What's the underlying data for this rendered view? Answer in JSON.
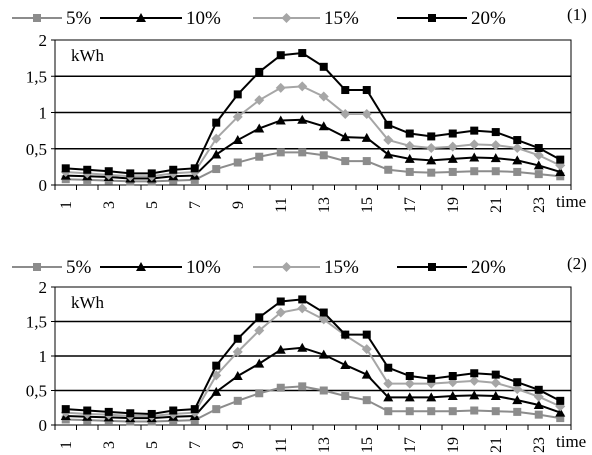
{
  "chart_data": [
    {
      "type": "line",
      "label": "(1)",
      "unit": "kWh",
      "xlabel": "time",
      "x": [
        1,
        2,
        3,
        4,
        5,
        6,
        7,
        8,
        9,
        10,
        11,
        12,
        13,
        14,
        15,
        16,
        17,
        18,
        19,
        20,
        21,
        22,
        23,
        24
      ],
      "x_tick_labels": [
        "1",
        "3",
        "5",
        "7",
        "9",
        "11",
        "13",
        "15",
        "17",
        "19",
        "21",
        "23"
      ],
      "ylim": [
        0,
        2
      ],
      "y_tick_labels": [
        "0",
        "0,5",
        "1",
        "1,5",
        "2"
      ],
      "series": [
        {
          "name": "5%",
          "color": "#8c8c8c",
          "marker": "square",
          "values": [
            0.08,
            0.07,
            0.06,
            0.05,
            0.05,
            0.06,
            0.07,
            0.22,
            0.31,
            0.39,
            0.45,
            0.45,
            0.41,
            0.33,
            0.33,
            0.21,
            0.18,
            0.17,
            0.18,
            0.19,
            0.19,
            0.18,
            0.15,
            0.12
          ]
        },
        {
          "name": "10%",
          "color": "#000000",
          "marker": "triangle",
          "values": [
            0.13,
            0.12,
            0.11,
            0.09,
            0.09,
            0.12,
            0.13,
            0.42,
            0.62,
            0.78,
            0.89,
            0.9,
            0.81,
            0.66,
            0.65,
            0.42,
            0.36,
            0.34,
            0.36,
            0.38,
            0.37,
            0.34,
            0.27,
            0.18
          ]
        },
        {
          "name": "15%",
          "color": "#a6a6a6",
          "marker": "diamond",
          "values": [
            0.18,
            0.16,
            0.14,
            0.12,
            0.12,
            0.16,
            0.18,
            0.64,
            0.94,
            1.17,
            1.34,
            1.36,
            1.22,
            0.98,
            0.98,
            0.62,
            0.54,
            0.51,
            0.53,
            0.56,
            0.55,
            0.51,
            0.41,
            0.27
          ]
        },
        {
          "name": "20%",
          "color": "#000000",
          "marker": "square",
          "values": [
            0.23,
            0.21,
            0.19,
            0.16,
            0.16,
            0.21,
            0.23,
            0.86,
            1.25,
            1.56,
            1.79,
            1.82,
            1.63,
            1.31,
            1.31,
            0.83,
            0.71,
            0.67,
            0.71,
            0.75,
            0.73,
            0.62,
            0.51,
            0.35
          ]
        }
      ]
    },
    {
      "type": "line",
      "label": "(2)",
      "unit": "kWh",
      "xlabel": "time",
      "x": [
        1,
        2,
        3,
        4,
        5,
        6,
        7,
        8,
        9,
        10,
        11,
        12,
        13,
        14,
        15,
        16,
        17,
        18,
        19,
        20,
        21,
        22,
        23,
        24
      ],
      "x_tick_labels": [
        "1",
        "3",
        "5",
        "7",
        "9",
        "11",
        "13",
        "15",
        "17",
        "19",
        "21",
        "23"
      ],
      "ylim": [
        0,
        2
      ],
      "y_tick_labels": [
        "0",
        "0,5",
        "1",
        "1,5",
        "2"
      ],
      "series": [
        {
          "name": "5%",
          "color": "#8c8c8c",
          "marker": "square",
          "values": [
            0.08,
            0.07,
            0.06,
            0.05,
            0.05,
            0.06,
            0.07,
            0.23,
            0.35,
            0.46,
            0.54,
            0.56,
            0.5,
            0.42,
            0.36,
            0.2,
            0.2,
            0.2,
            0.2,
            0.21,
            0.2,
            0.19,
            0.15,
            0.1
          ]
        },
        {
          "name": "10%",
          "color": "#000000",
          "marker": "triangle",
          "values": [
            0.13,
            0.12,
            0.11,
            0.1,
            0.1,
            0.12,
            0.13,
            0.48,
            0.71,
            0.89,
            1.09,
            1.12,
            1.02,
            0.87,
            0.73,
            0.4,
            0.4,
            0.4,
            0.42,
            0.43,
            0.42,
            0.36,
            0.29,
            0.18
          ]
        },
        {
          "name": "15%",
          "color": "#a6a6a6",
          "marker": "diamond",
          "values": [
            0.18,
            0.16,
            0.15,
            0.13,
            0.13,
            0.16,
            0.18,
            0.72,
            1.06,
            1.37,
            1.63,
            1.69,
            1.53,
            1.3,
            1.1,
            0.6,
            0.6,
            0.6,
            0.62,
            0.64,
            0.61,
            0.52,
            0.41,
            0.27
          ]
        },
        {
          "name": "20%",
          "color": "#000000",
          "marker": "square",
          "values": [
            0.23,
            0.21,
            0.19,
            0.17,
            0.16,
            0.21,
            0.23,
            0.86,
            1.25,
            1.56,
            1.79,
            1.82,
            1.63,
            1.31,
            1.31,
            0.83,
            0.71,
            0.67,
            0.71,
            0.75,
            0.73,
            0.62,
            0.51,
            0.35
          ]
        }
      ]
    }
  ]
}
